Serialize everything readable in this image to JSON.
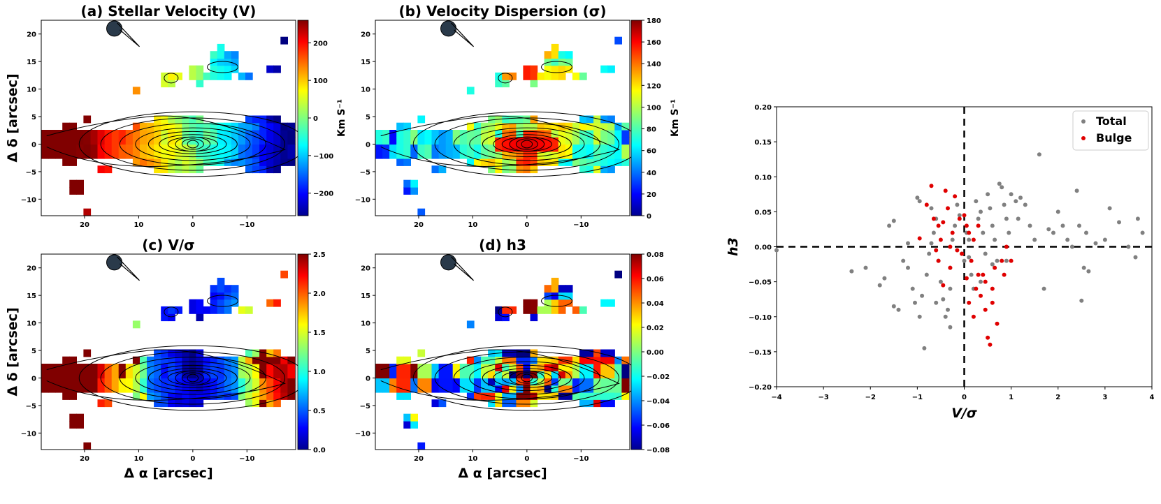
{
  "chart_data": [
    {
      "type": "heatmap",
      "panel": "a",
      "title": "(a) Stellar Velocity (V)",
      "xlabel": "",
      "ylabel": "Δ δ [arcsec]",
      "xlim": [
        28,
        -19
      ],
      "ylim": [
        -13,
        22.5
      ],
      "xticks": [
        "20",
        "10",
        "0",
        "−10"
      ],
      "yticks": [
        "20",
        "15",
        "10",
        "5",
        "0",
        "−5",
        "−10"
      ],
      "colorbar": {
        "label": "Km S⁻¹",
        "range": [
          -260,
          260
        ],
        "ticks": [
          "200",
          "100",
          "0",
          "−100",
          "−200"
        ],
        "tick_values": [
          200,
          100,
          0,
          -100,
          -200
        ]
      },
      "field": "velocity"
    },
    {
      "type": "heatmap",
      "panel": "b",
      "title": "(b) Velocity Dispersion (σ)",
      "xlabel": "",
      "ylabel": "",
      "xlim": [
        28,
        -19
      ],
      "ylim": [
        -13,
        22.5
      ],
      "xticks": [
        "20",
        "10",
        "0",
        "−10"
      ],
      "yticks": [
        "20",
        "15",
        "10",
        "5",
        "0",
        "−5",
        "−10"
      ],
      "colorbar": {
        "label": "Km S⁻¹",
        "range": [
          0,
          180
        ],
        "ticks": [
          "180",
          "160",
          "140",
          "120",
          "100",
          "80",
          "60",
          "40",
          "20",
          "0"
        ],
        "tick_values": [
          180,
          160,
          140,
          120,
          100,
          80,
          60,
          40,
          20,
          0
        ]
      },
      "field": "dispersion"
    },
    {
      "type": "heatmap",
      "panel": "c",
      "title": "(c) V/σ",
      "xlabel": "Δ α [arcsec]",
      "ylabel": "Δ δ [arcsec]",
      "xlim": [
        28,
        -19
      ],
      "ylim": [
        -13,
        22.5
      ],
      "xticks": [
        "20",
        "10",
        "0",
        "−10"
      ],
      "yticks": [
        "20",
        "15",
        "10",
        "5",
        "0",
        "−5",
        "−10"
      ],
      "colorbar": {
        "label": "",
        "range": [
          0,
          2.5
        ],
        "ticks": [
          "2.5",
          "2.0",
          "1.5",
          "1.0",
          "0.5",
          "0.0"
        ],
        "tick_values": [
          2.5,
          2.0,
          1.5,
          1.0,
          0.5,
          0.0
        ]
      },
      "field": "v_over_sigma"
    },
    {
      "type": "heatmap",
      "panel": "d",
      "title": "(d) h3",
      "xlabel": "Δ α [arcsec]",
      "ylabel": "",
      "xlim": [
        28,
        -19
      ],
      "ylim": [
        -13,
        22.5
      ],
      "xticks": [
        "20",
        "10",
        "0",
        "−10"
      ],
      "yticks": [
        "20",
        "15",
        "10",
        "5",
        "0",
        "−5",
        "−10"
      ],
      "colorbar": {
        "label": "",
        "range": [
          -0.08,
          0.08
        ],
        "ticks": [
          "0.08",
          "0.06",
          "0.04",
          "0.02",
          "0.00",
          "−0.02",
          "−0.04",
          "−0.06",
          "−0.08"
        ],
        "tick_values": [
          0.08,
          0.06,
          0.04,
          0.02,
          0.0,
          -0.02,
          -0.04,
          -0.06,
          -0.08
        ]
      },
      "field": "h3"
    },
    {
      "type": "scatter",
      "panel": "e",
      "title": "",
      "xlabel": "V/σ",
      "ylabel": "h3",
      "xlim": [
        -4,
        4
      ],
      "ylim": [
        -0.2,
        0.2
      ],
      "xticks": [
        "−4",
        "−3",
        "−2",
        "−1",
        "0",
        "1",
        "2",
        "3",
        "4"
      ],
      "yticks": [
        "0.20",
        "0.15",
        "0.10",
        "0.05",
        "0.00",
        "−0.05",
        "−0.10",
        "−0.15",
        "−0.20"
      ],
      "legend": "top-right",
      "series": [
        {
          "name": "Total",
          "color": "#808080",
          "points": [
            [
              -4.0,
              -0.005
            ],
            [
              -2.4,
              -0.035
            ],
            [
              -2.1,
              -0.03
            ],
            [
              -1.8,
              -0.055
            ],
            [
              -1.7,
              -0.045
            ],
            [
              -1.5,
              -0.085
            ],
            [
              -1.4,
              -0.09
            ],
            [
              -1.6,
              0.03
            ],
            [
              -1.5,
              0.037
            ],
            [
              -1.3,
              -0.02
            ],
            [
              -1.2,
              -0.03
            ],
            [
              -1.1,
              -0.06
            ],
            [
              -1.05,
              -0.08
            ],
            [
              -0.95,
              -0.1
            ],
            [
              -0.85,
              -0.145
            ],
            [
              -0.9,
              -0.07
            ],
            [
              -0.8,
              -0.04
            ],
            [
              -0.75,
              -0.01
            ],
            [
              -0.7,
              0.005
            ],
            [
              -0.65,
              0.02
            ],
            [
              -0.6,
              0.04
            ],
            [
              -0.55,
              -0.02
            ],
            [
              -0.5,
              -0.05
            ],
            [
              -0.45,
              -0.075
            ],
            [
              -0.4,
              -0.1
            ],
            [
              -0.35,
              -0.09
            ],
            [
              -0.3,
              -0.03
            ],
            [
              -0.25,
              0.01
            ],
            [
              -0.2,
              0.03
            ],
            [
              -0.15,
              0.06
            ],
            [
              -0.1,
              0.045
            ],
            [
              -0.05,
              -0.01
            ],
            [
              0.0,
              -0.02
            ],
            [
              0.05,
              0.02
            ],
            [
              0.1,
              0.01
            ],
            [
              0.15,
              -0.04
            ],
            [
              0.2,
              -0.06
            ],
            [
              0.25,
              0.065
            ],
            [
              0.3,
              0.04
            ],
            [
              0.35,
              0.05
            ],
            [
              0.4,
              0.02
            ],
            [
              0.45,
              -0.01
            ],
            [
              0.5,
              0.075
            ],
            [
              0.55,
              0.055
            ],
            [
              0.6,
              0.03
            ],
            [
              0.65,
              0.01
            ],
            [
              0.7,
              -0.02
            ],
            [
              0.75,
              0.09
            ],
            [
              0.8,
              0.085
            ],
            [
              0.85,
              0.06
            ],
            [
              0.9,
              0.04
            ],
            [
              0.95,
              0.02
            ],
            [
              1.0,
              0.075
            ],
            [
              1.1,
              0.065
            ],
            [
              1.2,
              0.07
            ],
            [
              1.3,
              0.06
            ],
            [
              1.4,
              0.03
            ],
            [
              1.5,
              0.01
            ],
            [
              1.6,
              0.132
            ],
            [
              1.7,
              -0.06
            ],
            [
              1.8,
              0.025
            ],
            [
              1.9,
              0.02
            ],
            [
              2.0,
              0.05
            ],
            [
              2.1,
              0.03
            ],
            [
              2.2,
              0.01
            ],
            [
              2.3,
              0.0
            ],
            [
              2.4,
              0.08
            ],
            [
              2.45,
              0.03
            ],
            [
              2.5,
              -0.077
            ],
            [
              2.55,
              -0.03
            ],
            [
              2.6,
              0.02
            ],
            [
              2.65,
              -0.035
            ],
            [
              2.8,
              0.005
            ],
            [
              3.0,
              0.01
            ],
            [
              3.1,
              0.055
            ],
            [
              3.3,
              0.035
            ],
            [
              3.5,
              0.0
            ],
            [
              3.65,
              -0.015
            ],
            [
              3.7,
              0.04
            ],
            [
              3.8,
              0.02
            ],
            [
              -1.0,
              0.07
            ],
            [
              -0.95,
              0.065
            ],
            [
              -1.2,
              0.005
            ],
            [
              -0.6,
              -0.08
            ],
            [
              -0.3,
              -0.115
            ],
            [
              0.1,
              -0.015
            ],
            [
              0.6,
              -0.025
            ],
            [
              0.9,
              -0.02
            ],
            [
              1.15,
              0.04
            ],
            [
              -0.7,
              0.055
            ],
            [
              -0.3,
              -0.06
            ],
            [
              0.35,
              -0.05
            ]
          ]
        },
        {
          "name": "Bulge",
          "color": "#e00000",
          "points": [
            [
              -0.95,
              0.012
            ],
            [
              -0.8,
              0.06
            ],
            [
              -0.7,
              0.087
            ],
            [
              -0.65,
              0.04
            ],
            [
              -0.6,
              -0.005
            ],
            [
              -0.55,
              -0.02
            ],
            [
              -0.5,
              0.01
            ],
            [
              -0.45,
              0.035
            ],
            [
              -0.4,
              0.08
            ],
            [
              -0.35,
              0.055
            ],
            [
              -0.3,
              -0.03
            ],
            [
              -0.25,
              0.02
            ],
            [
              -0.2,
              0.072
            ],
            [
              -0.15,
              -0.005
            ],
            [
              -0.1,
              0.04
            ],
            [
              -0.05,
              -0.01
            ],
            [
              0.0,
              0.045
            ],
            [
              0.05,
              0.03
            ],
            [
              0.1,
              0.02
            ],
            [
              0.15,
              -0.02
            ],
            [
              0.2,
              0.01
            ],
            [
              0.25,
              -0.06
            ],
            [
              0.3,
              0.03
            ],
            [
              0.35,
              -0.07
            ],
            [
              0.4,
              -0.04
            ],
            [
              0.45,
              -0.09
            ],
            [
              0.5,
              -0.13
            ],
            [
              0.55,
              -0.14
            ],
            [
              0.6,
              -0.06
            ],
            [
              0.65,
              -0.03
            ],
            [
              0.7,
              -0.11
            ],
            [
              0.8,
              -0.02
            ],
            [
              0.9,
              0.0
            ],
            [
              1.0,
              -0.02
            ],
            [
              -0.3,
              0.0
            ],
            [
              0.1,
              -0.08
            ],
            [
              0.2,
              -0.1
            ],
            [
              -0.55,
              0.03
            ],
            [
              0.05,
              -0.045
            ],
            [
              0.6,
              -0.08
            ],
            [
              0.85,
              -0.04
            ],
            [
              -0.45,
              -0.055
            ],
            [
              0.45,
              -0.05
            ],
            [
              0.3,
              -0.04
            ]
          ]
        }
      ]
    }
  ]
}
